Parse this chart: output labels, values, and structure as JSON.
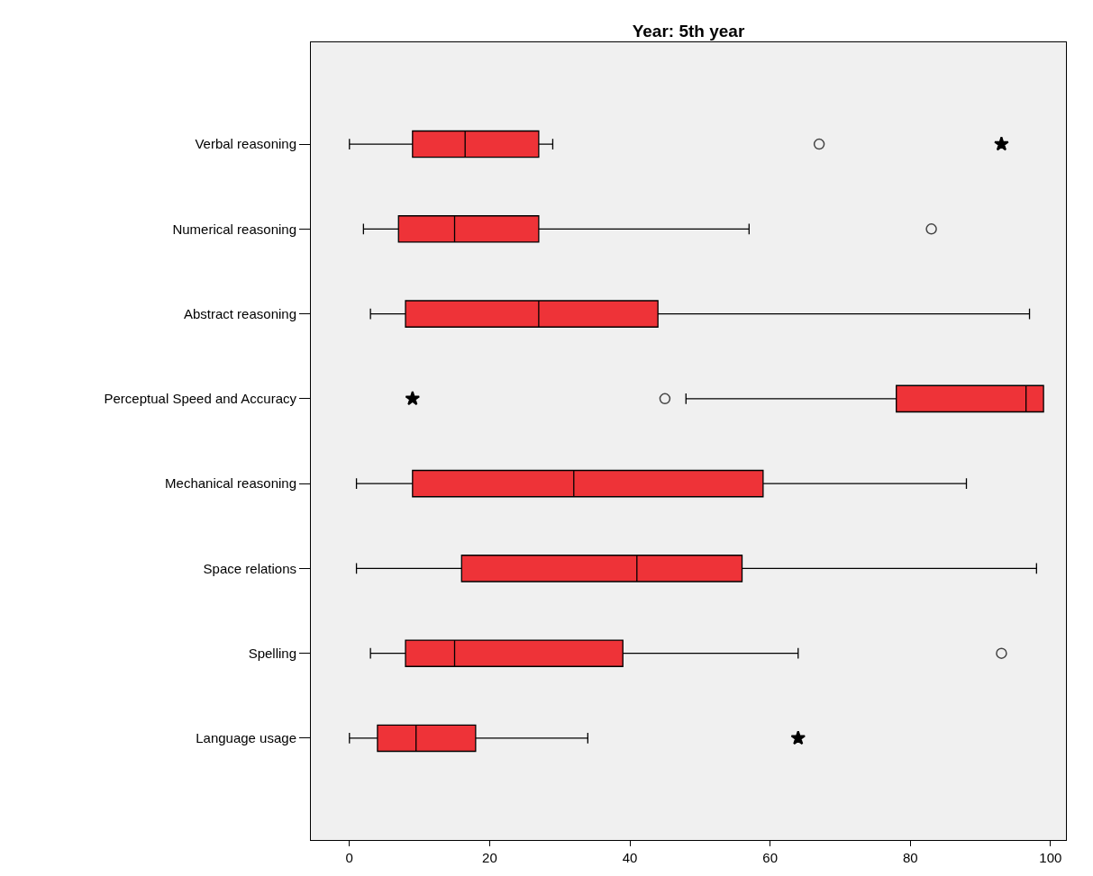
{
  "chart_data": {
    "type": "box",
    "title": "Year: 5th year",
    "orientation": "horizontal",
    "categories": [
      "Verbal reasoning",
      "Numerical reasoning",
      "Abstract reasoning",
      "Perceptual Speed and Accuracy",
      "Mechanical reasoning",
      "Space relations",
      "Spelling",
      "Language usage"
    ],
    "series": [
      {
        "color": "#ee3338",
        "boxes": [
          {
            "low": 0,
            "q1": 9,
            "median": 16.5,
            "q3": 27,
            "high": 29,
            "outliers": [
              67
            ]
          },
          {
            "low": 2,
            "q1": 7,
            "median": 15,
            "q3": 27,
            "high": 57,
            "outliers": [
              83
            ]
          },
          {
            "low": 3,
            "q1": 8,
            "median": 27,
            "q3": 44,
            "high": 97
          },
          {
            "low": 48,
            "q1": 78,
            "median": 96.5,
            "q3": 99,
            "high": 99,
            "outliers": [
              45
            ]
          },
          {
            "low": 1,
            "q1": 9,
            "median": 32,
            "q3": 59,
            "high": 88
          },
          {
            "low": 1,
            "q1": 16,
            "median": 41,
            "q3": 56,
            "high": 98
          },
          {
            "low": 3,
            "q1": 8,
            "median": 15,
            "q3": 39,
            "high": 64,
            "outliers": [
              93
            ]
          },
          {
            "low": 0,
            "q1": 4,
            "median": 9.5,
            "q3": 18,
            "high": 34
          }
        ]
      },
      {
        "type": "scatter",
        "marker": "star",
        "color": "#000000",
        "values": [
          93,
          null,
          null,
          9,
          null,
          null,
          null,
          64
        ]
      }
    ],
    "xlim": [
      -5.5,
      102.2
    ],
    "xticks": [
      0,
      20,
      40,
      60,
      80,
      100
    ]
  }
}
